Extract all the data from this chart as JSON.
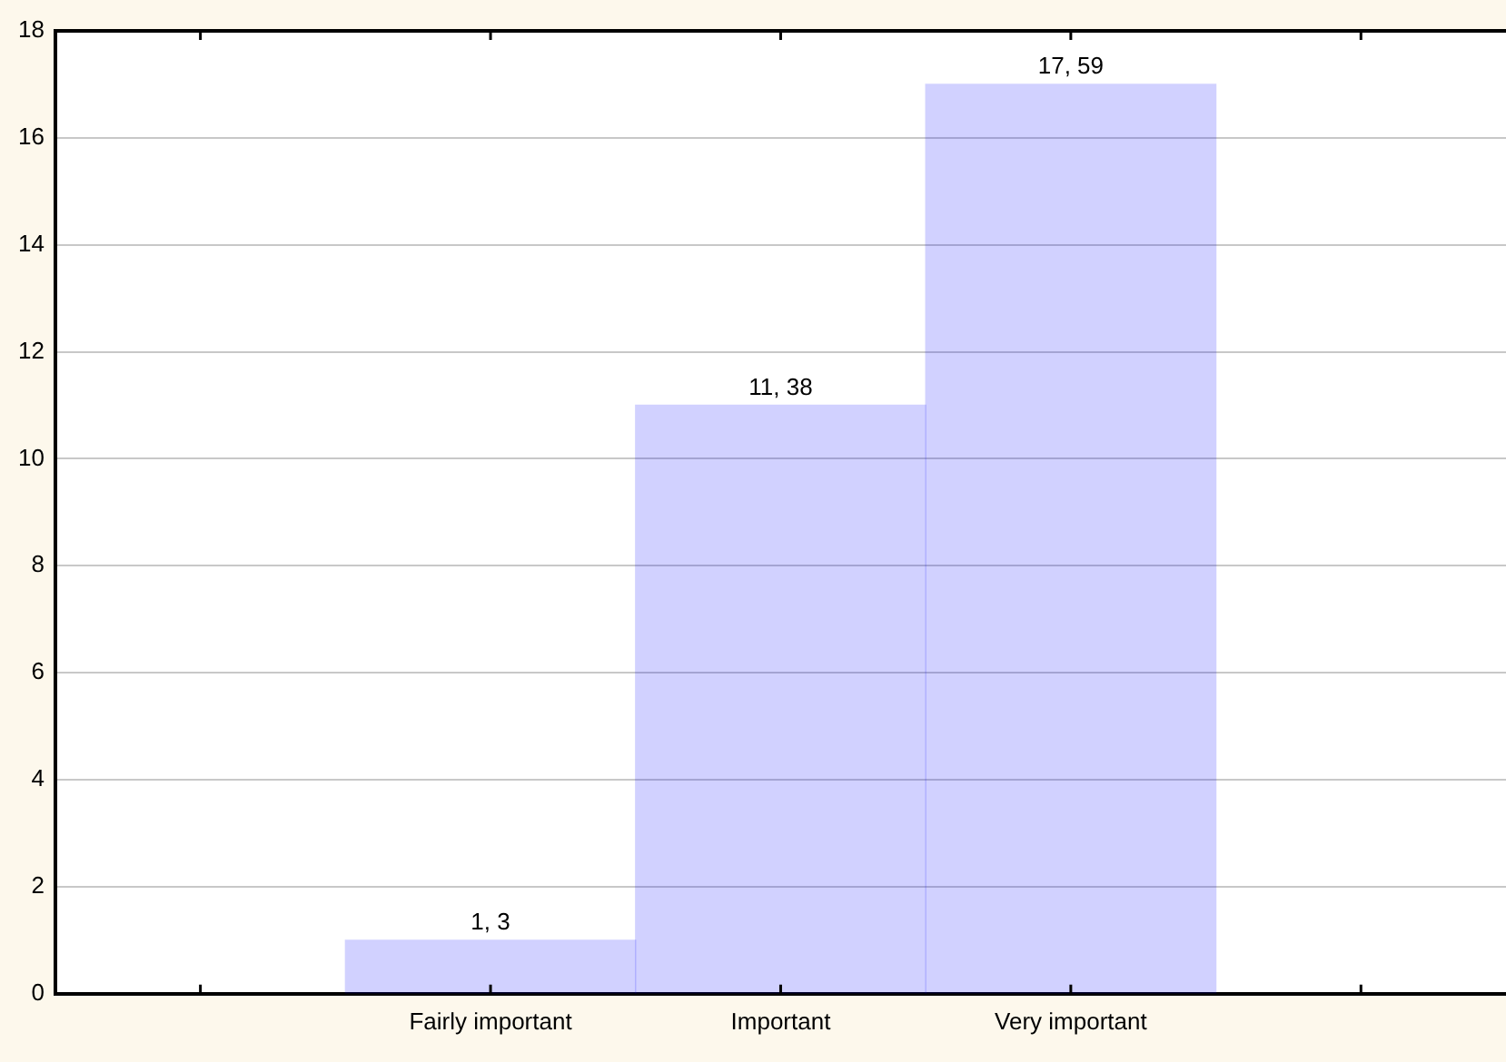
{
  "chart_data": {
    "type": "bar",
    "categories": [
      null,
      "Fairly important",
      "Important",
      "Very important",
      null
    ],
    "values": [
      null,
      1,
      11,
      17,
      null
    ],
    "value_labels": [
      null,
      "1, 3",
      "11, 38",
      "17, 59",
      null
    ],
    "color": "#0000ff",
    "ylim": [
      0,
      18
    ],
    "yticks": [
      0,
      2,
      4,
      6,
      8,
      10,
      12,
      14,
      16,
      18
    ],
    "grid": "y",
    "legend": false
  }
}
